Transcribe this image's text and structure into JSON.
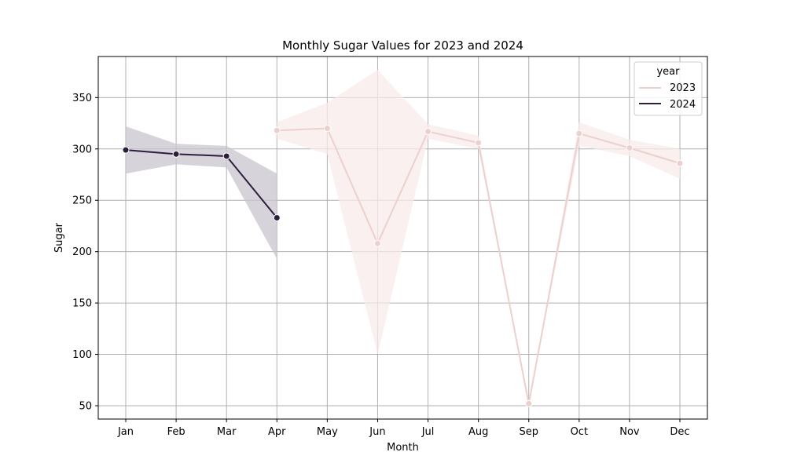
{
  "chart_data": {
    "type": "line",
    "title": "Monthly Sugar Values for 2023 and 2024",
    "xlabel": "Month",
    "ylabel": "Sugar",
    "categories": [
      "Jan",
      "Feb",
      "Mar",
      "Apr",
      "May",
      "Jun",
      "Jul",
      "Aug",
      "Sep",
      "Oct",
      "Nov",
      "Dec"
    ],
    "ylim": [
      37,
      390
    ],
    "yticks": [
      "50",
      "100",
      "150",
      "200",
      "250",
      "300",
      "350"
    ],
    "grid": true,
    "legend": {
      "title": "year",
      "placement": "top-right"
    },
    "series": [
      {
        "name": "2023",
        "color": "#ecd0cd",
        "band_color": "#f7ebe9",
        "values": [
          null,
          null,
          null,
          318,
          320,
          208,
          317,
          306,
          52,
          315,
          301,
          286
        ],
        "ci_lower": [
          null,
          null,
          null,
          310,
          295,
          100,
          310,
          300,
          52,
          303,
          293,
          271
        ],
        "ci_upper": [
          null,
          null,
          null,
          326,
          345,
          377,
          324,
          313,
          52,
          326,
          309,
          300
        ]
      },
      {
        "name": "2024",
        "color": "#2d1e3e",
        "band_color": "#c9c4ce",
        "values": [
          299,
          295,
          293,
          233,
          null,
          null,
          null,
          null,
          null,
          null,
          null,
          null
        ],
        "ci_lower": [
          276,
          285,
          282,
          193,
          null,
          null,
          null,
          null,
          null,
          null,
          null,
          null
        ],
        "ci_upper": [
          322,
          305,
          303,
          276,
          null,
          null,
          null,
          null,
          null,
          null,
          null,
          null
        ]
      }
    ]
  }
}
